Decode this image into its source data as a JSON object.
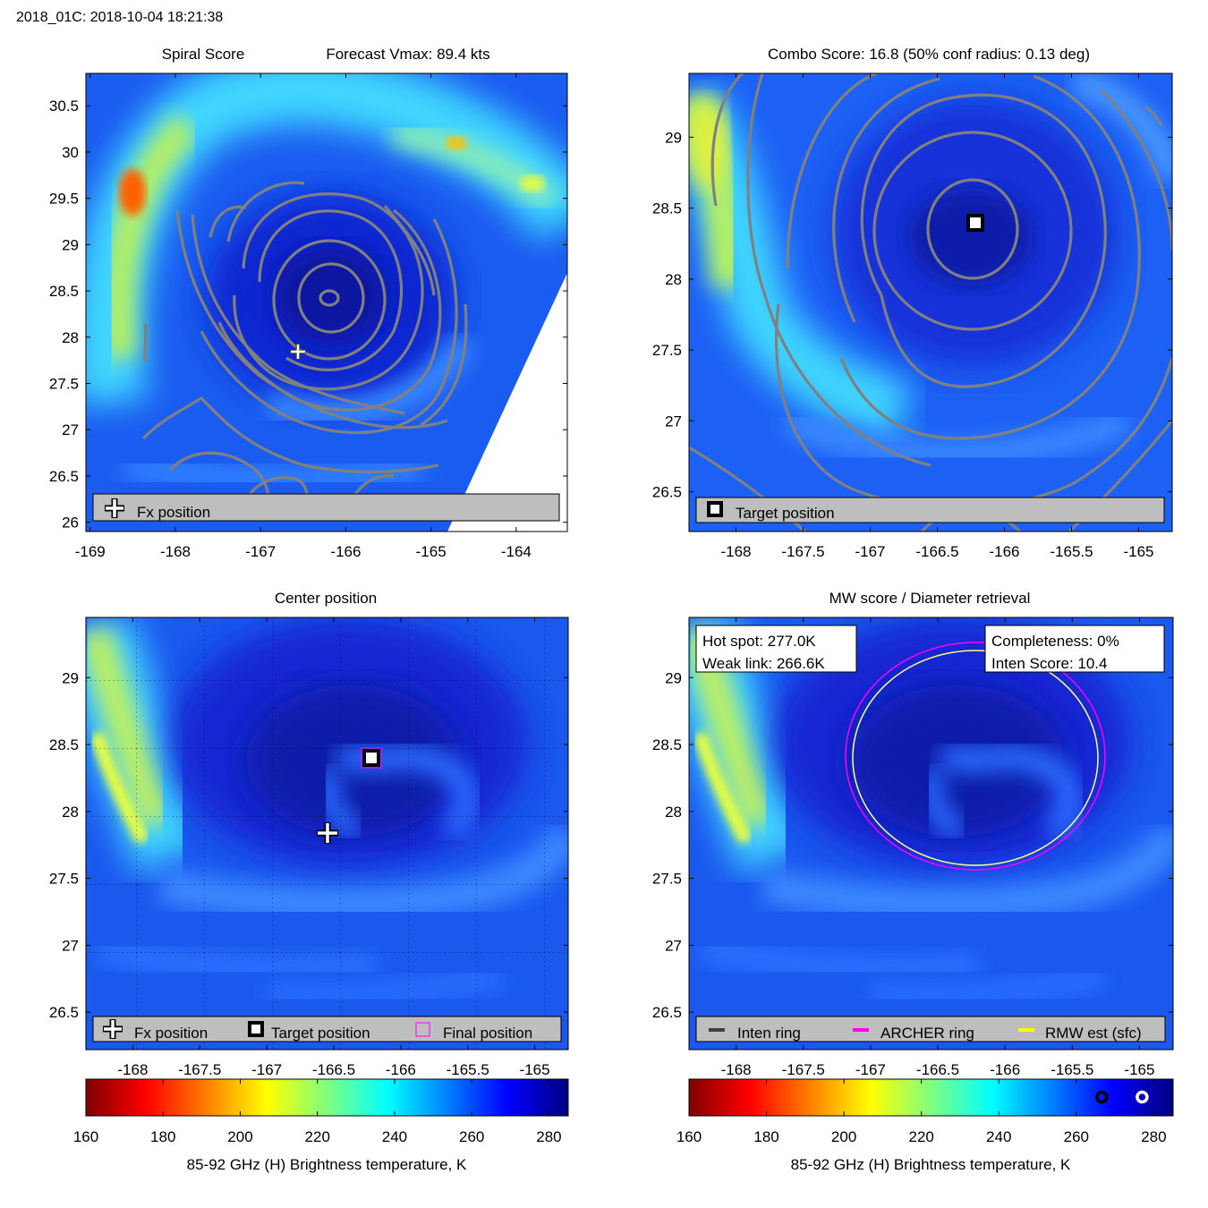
{
  "figure": {
    "title": "2018_01C: 2018-10-04 18:21:38"
  },
  "colors": {
    "contour": "#808080",
    "legend_bg": "#bebebe",
    "white": "#ffffff",
    "archer_ring": "#ff00ff",
    "rmw_ring": "#ffff00",
    "inten_ring": "#404040",
    "final_box": "#ff00ff"
  },
  "panels": {
    "spiral": {
      "title_left": "Spiral Score",
      "title_right": "Forecast Vmax: 89.4 kts",
      "legend": {
        "fx": "Fx position"
      }
    },
    "combo": {
      "title": "Combo Score: 16.8  (50% conf radius: 0.13 deg)",
      "legend": {
        "target": "Target position"
      }
    },
    "center": {
      "title": "Center position",
      "legend": {
        "fx": "Fx position",
        "target": "Target position",
        "final": "Final position"
      }
    },
    "mw": {
      "title": "MW score / Diameter retrieval",
      "hot_spot": "Hot spot: 277.0K",
      "weak_link": "Weak link: 266.6K",
      "completeness": "Completeness: 0%",
      "inten_score": "Inten Score: 10.4",
      "legend": {
        "inten": "Inten ring",
        "archer": "ARCHER ring",
        "rmw": "RMW est (sfc)"
      }
    }
  },
  "colorbar": {
    "label": "85-92 GHz (H) Brightness temperature, K",
    "ticks": [
      "160",
      "180",
      "200",
      "220",
      "240",
      "260",
      "280"
    ]
  },
  "chart_data": [
    {
      "type": "heatmap",
      "name": "Spiral Score",
      "title": "Spiral Score",
      "annotation": "Forecast Vmax: 89.4 kts",
      "xlim": [
        -169.05,
        -163.4
      ],
      "ylim": [
        25.9,
        30.85
      ],
      "xticks": [
        "-169",
        "-168",
        "-167",
        "-166",
        "-165",
        "-164"
      ],
      "yticks": [
        "30.5",
        "30",
        "29.5",
        "29",
        "28.5",
        "28",
        "27.5",
        "27",
        "26.5",
        "26"
      ],
      "markers": {
        "fx_position": [
          -166.5,
          27.85
        ]
      },
      "contours": "spiral score contours centred near (-166.2, 28.4)"
    },
    {
      "type": "heatmap",
      "name": "Combo Score",
      "title": "Combo Score: 16.8  (50% conf radius: 0.13 deg)",
      "combo_score": 16.8,
      "conf_radius_deg": 0.13,
      "xlim": [
        -168.35,
        -164.75
      ],
      "ylim": [
        26.22,
        29.45
      ],
      "xticks": [
        "-168",
        "-167.5",
        "-167",
        "-166.5",
        "-166",
        "-165.5",
        "-165"
      ],
      "yticks": [
        "29",
        "28.5",
        "28",
        "27.5",
        "27",
        "26.5"
      ],
      "markers": {
        "target_position": [
          -166.2,
          28.38
        ]
      }
    },
    {
      "type": "heatmap",
      "name": "Center position",
      "title": "Center position",
      "xlim": [
        -168.35,
        -164.75
      ],
      "ylim": [
        26.22,
        29.45
      ],
      "xticks": [
        "-168",
        "-167.5",
        "-167",
        "-166.5",
        "-166",
        "-165.5",
        "-165"
      ],
      "yticks": [
        "29",
        "28.5",
        "28",
        "27.5",
        "27",
        "26.5"
      ],
      "markers": {
        "fx_position": [
          -166.5,
          27.82
        ],
        "target_position": [
          -166.2,
          28.38
        ],
        "final_position": [
          -166.2,
          28.38
        ]
      }
    },
    {
      "type": "heatmap",
      "name": "MW score / Diameter retrieval",
      "title": "MW score / Diameter retrieval",
      "hot_spot_K": 277.0,
      "weak_link_K": 266.6,
      "completeness_pct": 0,
      "inten_score": 10.4,
      "xlim": [
        -168.35,
        -164.75
      ],
      "ylim": [
        26.22,
        29.45
      ],
      "xticks": [
        "-168",
        "-167.5",
        "-167",
        "-166.5",
        "-166",
        "-165.5",
        "-165"
      ],
      "yticks": [
        "29",
        "28.5",
        "28",
        "27.5",
        "27",
        "26.5"
      ],
      "rings": {
        "center": [
          -166.2,
          28.4
        ],
        "archer_radius_deg": 0.96,
        "rmw_radius_deg": 0.91
      }
    }
  ],
  "colorbars": [
    {
      "label": "85-92 GHz (H) Brightness temperature, K",
      "range": [
        160,
        285
      ],
      "ticks": [
        160,
        180,
        200,
        220,
        240,
        260,
        280
      ]
    },
    {
      "label": "85-92 GHz (H) Brightness temperature, K",
      "range": [
        160,
        285
      ],
      "ticks": [
        160,
        180,
        200,
        220,
        240,
        260,
        280
      ],
      "markers": [
        {
          "label": "Weak link",
          "value": 266.6
        },
        {
          "label": "Hot spot",
          "value": 277.0
        }
      ]
    }
  ]
}
